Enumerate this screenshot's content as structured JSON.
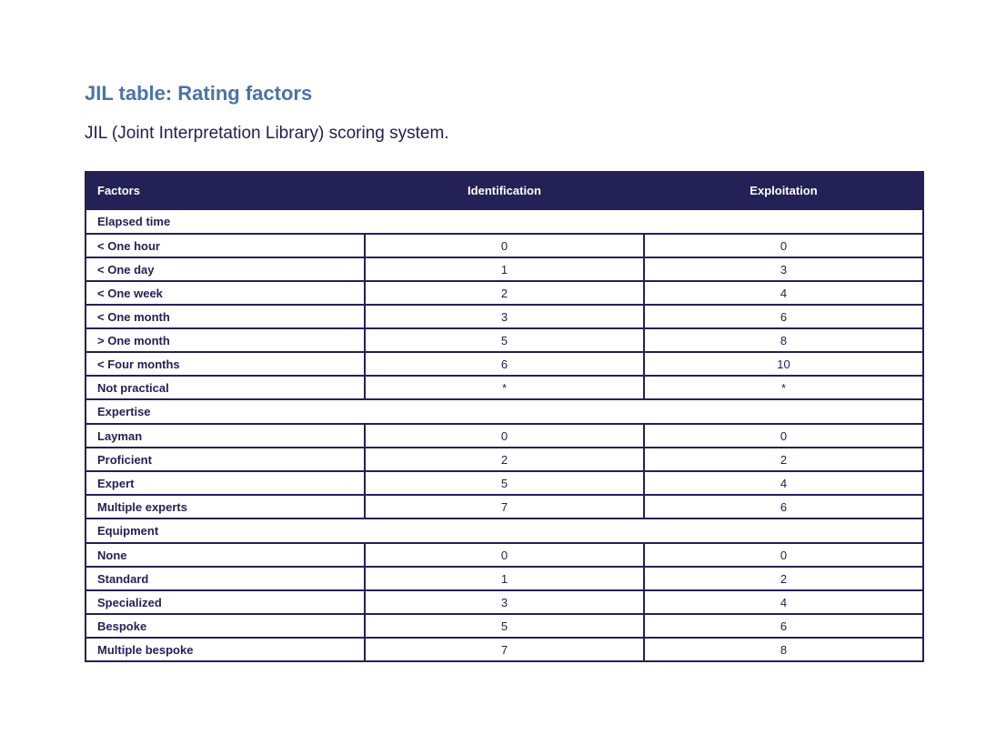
{
  "page": {
    "title": "JIL table: Rating factors",
    "subtitle": "JIL (Joint Interpretation Library) scoring system."
  },
  "table": {
    "headers": [
      "Factors",
      "Identification",
      "Exploitation"
    ],
    "sections": [
      {
        "name": "Elapsed time",
        "rows": [
          {
            "factor": "< One hour",
            "identification": "0",
            "exploitation": "0"
          },
          {
            "factor": "< One day",
            "identification": "1",
            "exploitation": "3"
          },
          {
            "factor": "< One week",
            "identification": "2",
            "exploitation": "4"
          },
          {
            "factor": "< One month",
            "identification": "3",
            "exploitation": "6"
          },
          {
            "factor": "> One month",
            "identification": "5",
            "exploitation": "8"
          },
          {
            "factor": "< Four months",
            "identification": "6",
            "exploitation": "10"
          },
          {
            "factor": "Not practical",
            "identification": "*",
            "exploitation": "*"
          }
        ]
      },
      {
        "name": "Expertise",
        "rows": [
          {
            "factor": "Layman",
            "identification": "0",
            "exploitation": "0"
          },
          {
            "factor": "Proficient",
            "identification": "2",
            "exploitation": "2"
          },
          {
            "factor": "Expert",
            "identification": "5",
            "exploitation": "4"
          },
          {
            "factor": "Multiple experts",
            "identification": "7",
            "exploitation": "6"
          }
        ]
      },
      {
        "name": "Equipment",
        "rows": [
          {
            "factor": "None",
            "identification": "0",
            "exploitation": "0"
          },
          {
            "factor": "Standard",
            "identification": "1",
            "exploitation": "2"
          },
          {
            "factor": "Specialized",
            "identification": "3",
            "exploitation": "4"
          },
          {
            "factor": "Bespoke",
            "identification": "5",
            "exploitation": "6"
          },
          {
            "factor": "Multiple bespoke",
            "identification": "7",
            "exploitation": "8"
          }
        ]
      }
    ]
  },
  "colors": {
    "title": "#4a73a8",
    "header_bg": "#242156",
    "text": "#22204f"
  }
}
